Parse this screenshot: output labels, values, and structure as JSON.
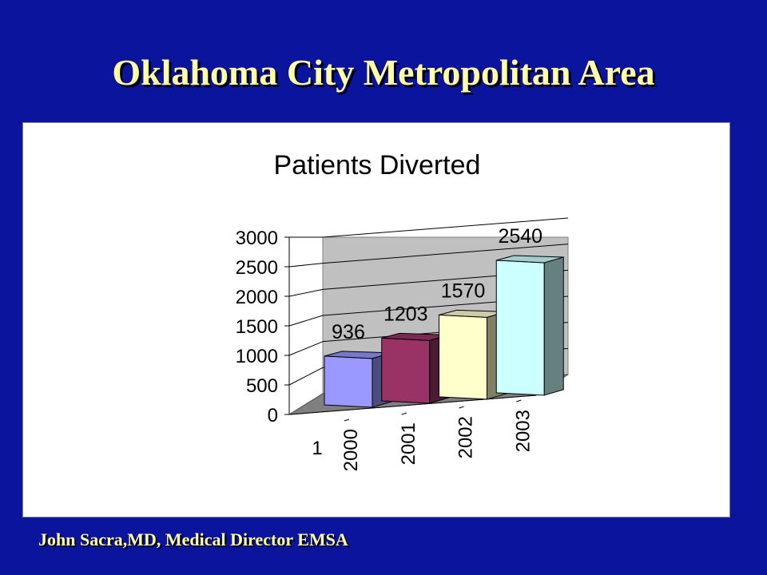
{
  "slide": {
    "title": "Oklahoma City Metropolitan Area",
    "credit": "John Sacra,MD, Medical Director EMSA"
  },
  "colors": {
    "background": "#0b149c",
    "title_text": "#ffffa8",
    "plot_wall": "#c0c0c0",
    "floor": "#808080"
  },
  "chart_data": {
    "type": "bar",
    "title": "Patients Diverted",
    "categories": [
      "2000",
      "2001",
      "2002",
      "2003"
    ],
    "series": [
      {
        "values": [
          936,
          1203,
          1570,
          2540
        ]
      }
    ],
    "series_axis_label": "1",
    "ylim": [
      0,
      3000
    ],
    "yticks": [
      0,
      500,
      1000,
      1500,
      2000,
      2500,
      3000
    ],
    "grid": true,
    "three_d": true,
    "legend": "none",
    "bar_colors": [
      {
        "front": "#9999ff",
        "side": "#4c4c80",
        "top": "#7777cc"
      },
      {
        "front": "#993366",
        "side": "#4c1a33",
        "top": "#7a2952"
      },
      {
        "front": "#ffffcc",
        "side": "#808066",
        "top": "#ccccaa"
      },
      {
        "front": "#ccffff",
        "side": "#668080",
        "top": "#a3cccc"
      }
    ]
  }
}
